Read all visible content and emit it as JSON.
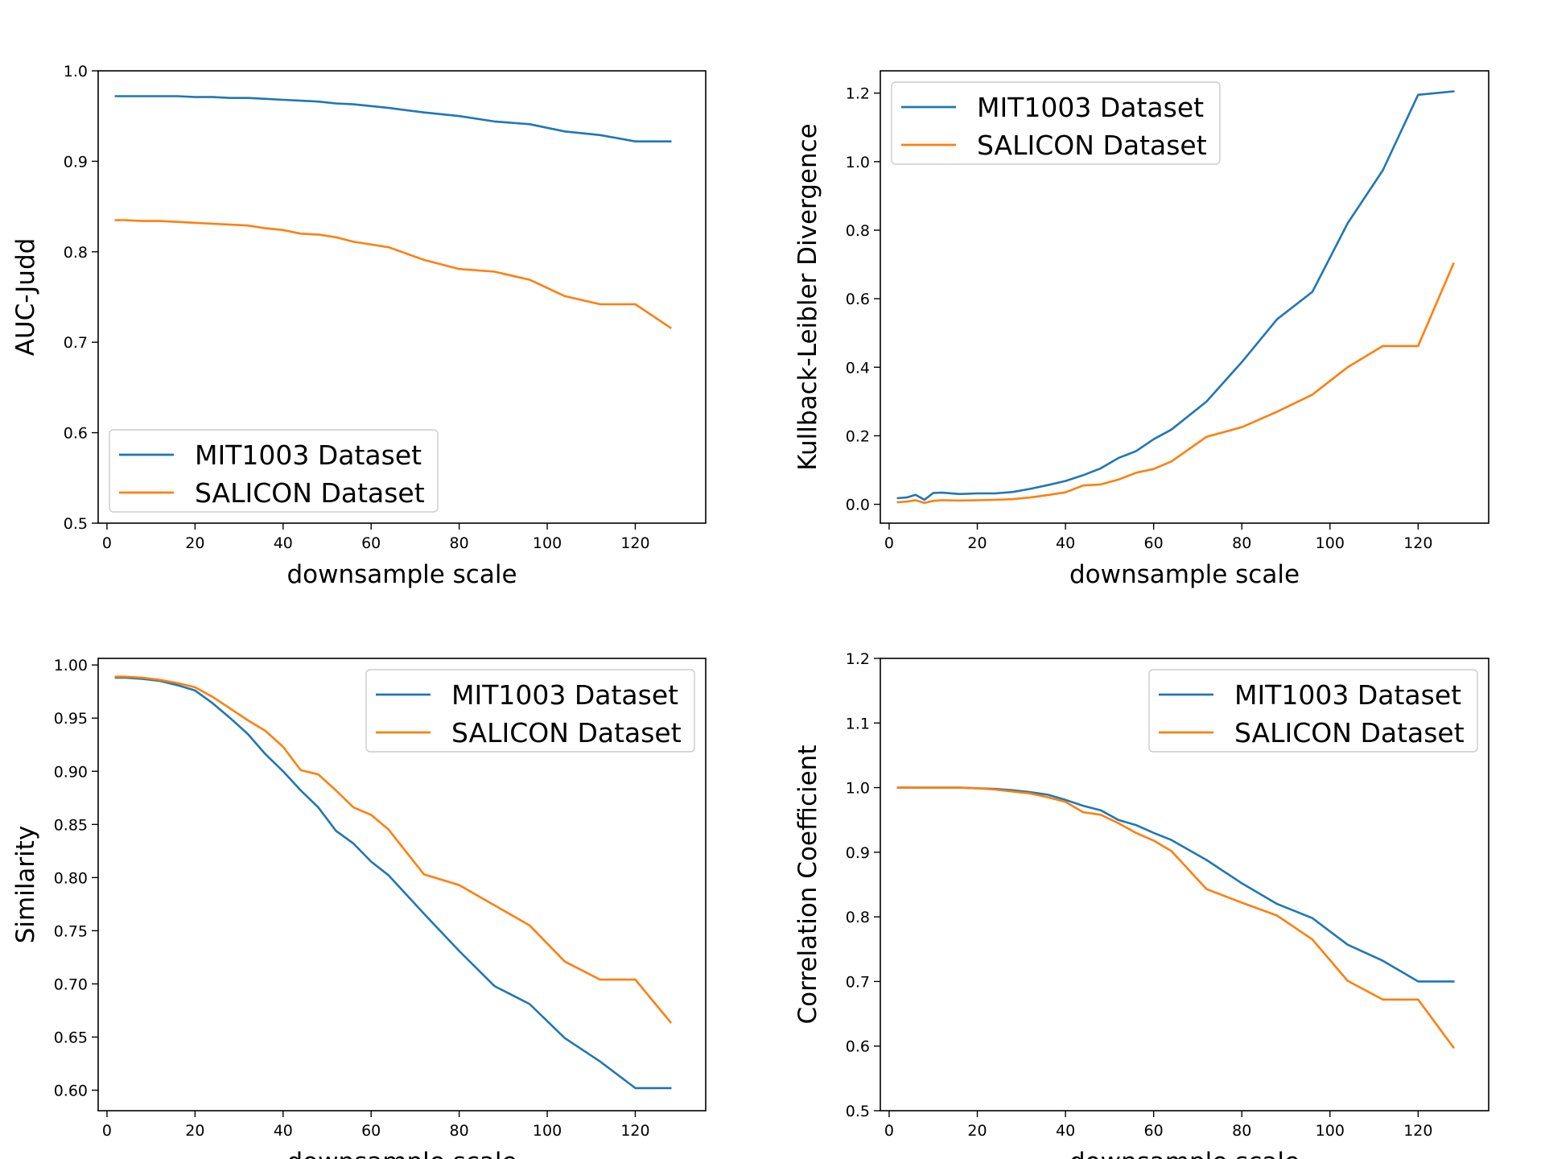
{
  "chart_data": [
    {
      "type": "line",
      "id": "auc",
      "xlabel": "downsample scale",
      "ylabel": "AUC-Judd",
      "xlim": [
        -2,
        136
      ],
      "ylim": [
        0.5,
        1.0
      ],
      "xticks": [
        0,
        20,
        40,
        60,
        80,
        100,
        120
      ],
      "yticks": [
        "0.5",
        "0.6",
        "0.7",
        "0.8",
        "0.9",
        "1.0"
      ],
      "legend_position": "lower-left",
      "x": [
        2,
        4,
        8,
        12,
        16,
        20,
        24,
        28,
        32,
        36,
        40,
        44,
        48,
        52,
        56,
        64,
        72,
        80,
        88,
        96,
        104,
        112,
        120,
        128
      ],
      "series": [
        {
          "name": "MIT1003 Dataset",
          "color": "#1f77b4",
          "values": [
            0.972,
            0.972,
            0.972,
            0.972,
            0.972,
            0.971,
            0.971,
            0.97,
            0.97,
            0.969,
            0.968,
            0.967,
            0.966,
            0.964,
            0.963,
            0.959,
            0.954,
            0.95,
            0.944,
            0.941,
            0.933,
            0.929,
            0.922,
            0.922
          ]
        },
        {
          "name": "SALICON Dataset",
          "color": "#ff7f0e",
          "values": [
            0.835,
            0.835,
            0.834,
            0.834,
            0.833,
            0.832,
            0.831,
            0.83,
            0.829,
            0.826,
            0.824,
            0.82,
            0.819,
            0.816,
            0.811,
            0.805,
            0.791,
            0.781,
            0.778,
            0.769,
            0.751,
            0.742,
            0.742,
            0.716
          ]
        }
      ]
    },
    {
      "type": "line",
      "id": "kld",
      "xlabel": "downsample scale",
      "ylabel": "Kullback-Leibler Divergence",
      "xlim": [
        -2,
        136
      ],
      "ylim": [
        -0.055,
        1.265
      ],
      "xticks": [
        0,
        20,
        40,
        60,
        80,
        100,
        120
      ],
      "yticks": [
        "0.0",
        "0.2",
        "0.4",
        "0.6",
        "0.8",
        "1.0",
        "1.2"
      ],
      "legend_position": "upper-left",
      "x": [
        2,
        4,
        6,
        8,
        10,
        12,
        16,
        20,
        24,
        28,
        32,
        36,
        40,
        44,
        48,
        52,
        56,
        60,
        64,
        72,
        80,
        88,
        96,
        104,
        112,
        120,
        128
      ],
      "series": [
        {
          "name": "MIT1003 Dataset",
          "color": "#1f77b4",
          "values": [
            0.018,
            0.02,
            0.028,
            0.013,
            0.033,
            0.034,
            0.03,
            0.032,
            0.032,
            0.036,
            0.045,
            0.056,
            0.068,
            0.085,
            0.105,
            0.135,
            0.155,
            0.19,
            0.218,
            0.3,
            0.415,
            0.54,
            0.62,
            0.82,
            0.975,
            1.195,
            1.205
          ]
        },
        {
          "name": "SALICON Dataset",
          "color": "#ff7f0e",
          "values": [
            0.006,
            0.008,
            0.012,
            0.004,
            0.01,
            0.012,
            0.011,
            0.012,
            0.013,
            0.015,
            0.02,
            0.027,
            0.035,
            0.055,
            0.058,
            0.072,
            0.092,
            0.103,
            0.125,
            0.197,
            0.225,
            0.27,
            0.32,
            0.4,
            0.462,
            0.462,
            0.702
          ]
        }
      ]
    },
    {
      "type": "line",
      "id": "sim",
      "xlabel": "downsample scale",
      "ylabel": "Similarity",
      "xlim": [
        -2,
        136
      ],
      "ylim": [
        0.5807,
        1.0062
      ],
      "xticks": [
        0,
        20,
        40,
        60,
        80,
        100,
        120
      ],
      "yticks": [
        "0.60",
        "0.65",
        "0.70",
        "0.75",
        "0.80",
        "0.85",
        "0.90",
        "0.95",
        "1.00"
      ],
      "legend_position": "upper-right",
      "x": [
        2,
        4,
        8,
        12,
        16,
        20,
        24,
        28,
        32,
        36,
        40,
        44,
        48,
        52,
        56,
        60,
        64,
        72,
        80,
        88,
        96,
        104,
        112,
        120,
        128
      ],
      "series": [
        {
          "name": "MIT1003 Dataset",
          "color": "#1f77b4",
          "values": [
            0.988,
            0.988,
            0.987,
            0.985,
            0.981,
            0.976,
            0.964,
            0.95,
            0.935,
            0.916,
            0.9,
            0.882,
            0.866,
            0.844,
            0.832,
            0.815,
            0.802,
            0.766,
            0.731,
            0.698,
            0.681,
            0.649,
            0.627,
            0.602,
            0.602
          ]
        },
        {
          "name": "SALICON Dataset",
          "color": "#ff7f0e",
          "values": [
            0.989,
            0.989,
            0.988,
            0.986,
            0.983,
            0.979,
            0.97,
            0.959,
            0.948,
            0.938,
            0.923,
            0.901,
            0.897,
            0.882,
            0.866,
            0.859,
            0.845,
            0.803,
            0.793,
            0.774,
            0.755,
            0.721,
            0.704,
            0.704,
            0.664
          ]
        }
      ]
    },
    {
      "type": "line",
      "id": "cc",
      "xlabel": "downsample scale",
      "ylabel": "Correlation Coefficient",
      "xlim": [
        -2,
        136
      ],
      "ylim": [
        0.5,
        1.2
      ],
      "xticks": [
        0,
        20,
        40,
        60,
        80,
        100,
        120
      ],
      "yticks": [
        "0.5",
        "0.6",
        "0.7",
        "0.8",
        "0.9",
        "1.0",
        "1.1",
        "1.2"
      ],
      "legend_position": "upper-right",
      "x": [
        2,
        4,
        8,
        12,
        16,
        20,
        24,
        28,
        32,
        36,
        40,
        44,
        48,
        52,
        56,
        60,
        64,
        72,
        80,
        88,
        96,
        104,
        112,
        120,
        128
      ],
      "series": [
        {
          "name": "MIT1003 Dataset",
          "color": "#1f77b4",
          "values": [
            1.0,
            1.0,
            1.0,
            1.0,
            1.0,
            0.999,
            0.998,
            0.996,
            0.993,
            0.989,
            0.981,
            0.972,
            0.965,
            0.95,
            0.942,
            0.93,
            0.919,
            0.888,
            0.852,
            0.82,
            0.798,
            0.757,
            0.732,
            0.7,
            0.7
          ]
        },
        {
          "name": "SALICON Dataset",
          "color": "#ff7f0e",
          "values": [
            1.0,
            1.0,
            1.0,
            1.0,
            1.0,
            0.999,
            0.997,
            0.994,
            0.991,
            0.985,
            0.978,
            0.962,
            0.958,
            0.945,
            0.93,
            0.918,
            0.902,
            0.843,
            0.822,
            0.802,
            0.765,
            0.701,
            0.672,
            0.672,
            0.598
          ]
        }
      ]
    }
  ]
}
